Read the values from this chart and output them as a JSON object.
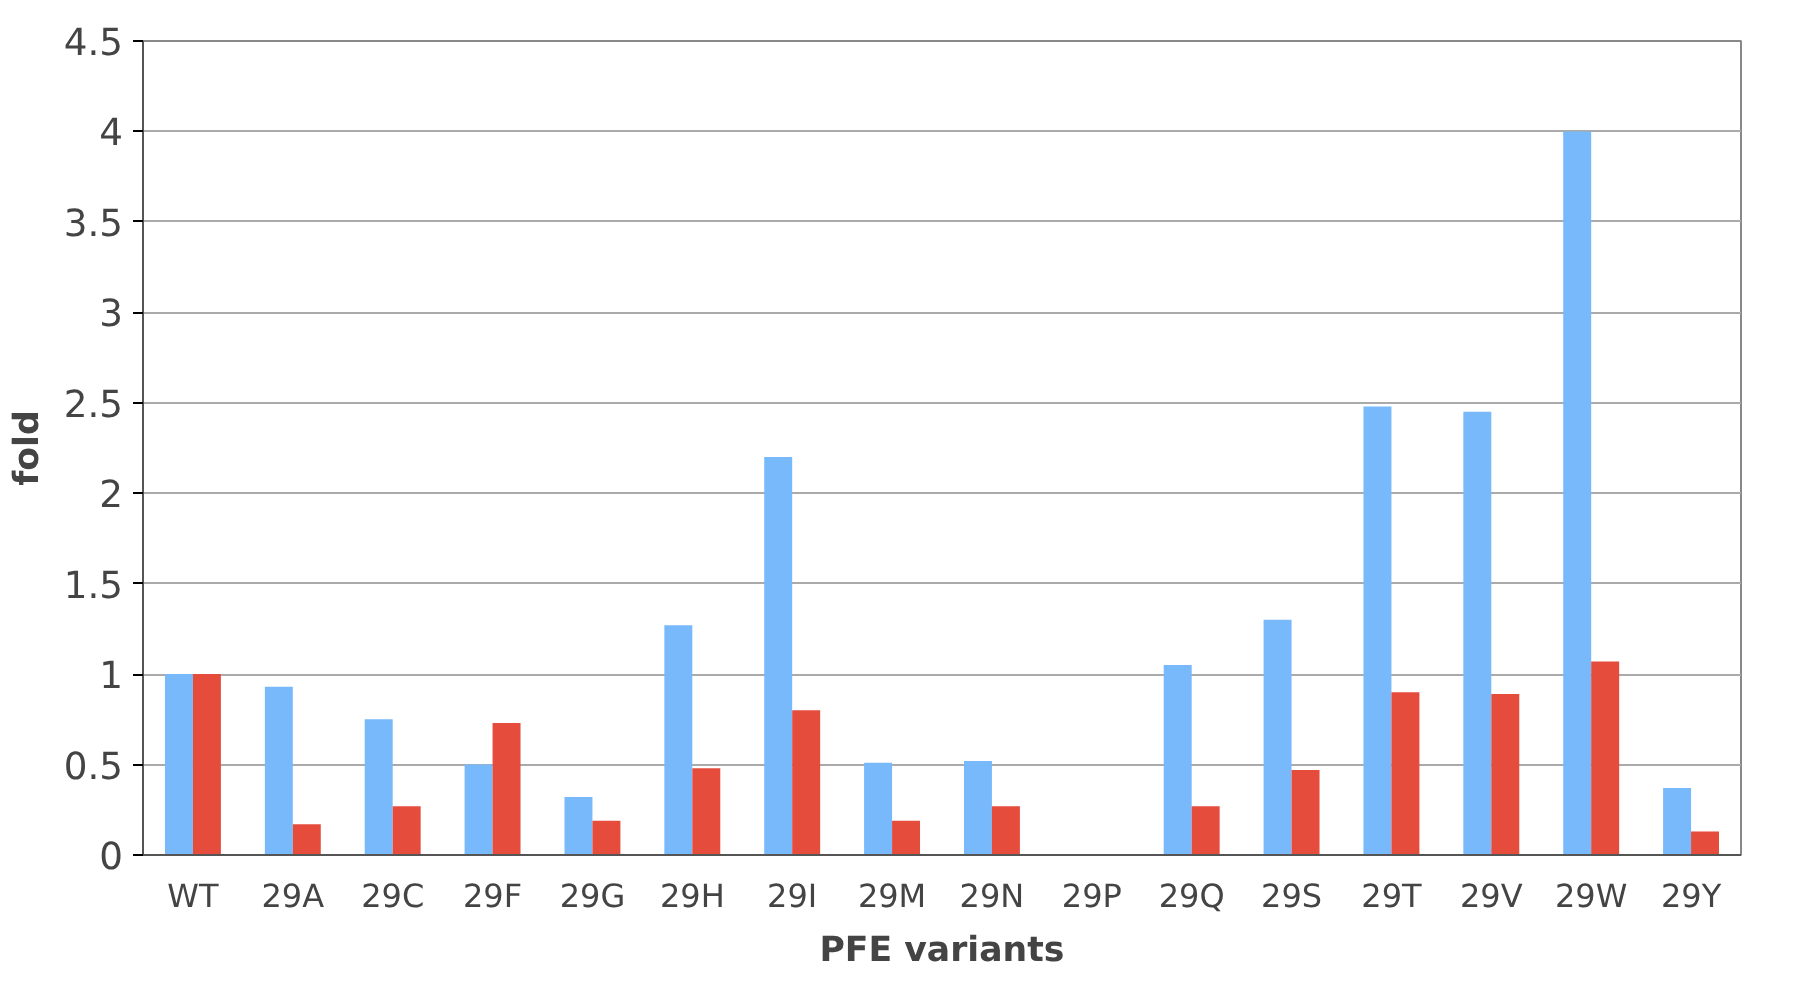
{
  "chart_data": {
    "type": "bar",
    "xlabel": "PFE variants",
    "ylabel": "fold",
    "categories": [
      "WT",
      "29A",
      "29C",
      "29F",
      "29G",
      "29H",
      "29I",
      "29M",
      "29N",
      "29P",
      "29Q",
      "29S",
      "29T",
      "29V",
      "29W",
      "29Y"
    ],
    "series": [
      {
        "color": "#77b9fb",
        "values": [
          1.0,
          0.93,
          0.75,
          0.5,
          0.32,
          1.27,
          2.2,
          0.51,
          0.52,
          0,
          1.05,
          1.3,
          2.48,
          2.45,
          4.0,
          0.37
        ]
      },
      {
        "color": "#e64c3c",
        "values": [
          1.0,
          0.17,
          0.27,
          0.73,
          0.19,
          0.48,
          0.8,
          0.19,
          0.27,
          0,
          0.27,
          0.47,
          0.9,
          0.89,
          1.07,
          0.13
        ]
      }
    ],
    "ylim": [
      0,
      4.5
    ],
    "yticks": [
      0,
      0.5,
      1,
      1.5,
      2,
      2.5,
      3,
      3.5,
      4,
      4.5
    ],
    "grid": "y"
  }
}
